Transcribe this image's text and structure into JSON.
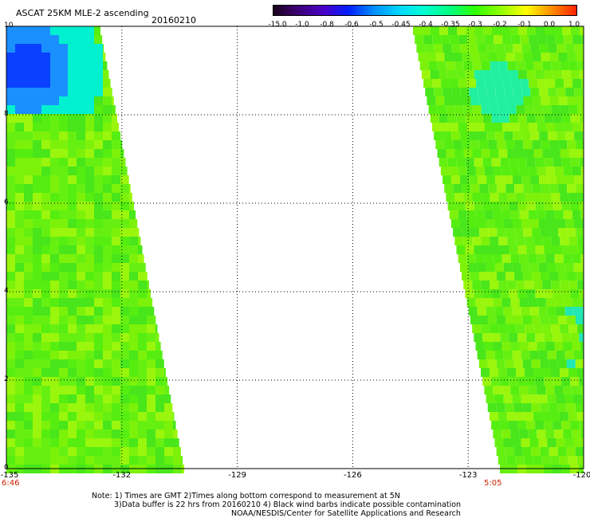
{
  "header": {
    "title": "ASCAT 25KM MLE-2 ascending",
    "date": "20160210"
  },
  "colorbar": {
    "labels": [
      "-15.0",
      "-1.0",
      "-0.8",
      "-0.6",
      "-0.5",
      "-0.45",
      "-0.4",
      "-0.35",
      "-0.3",
      "-0.2",
      "-0.1",
      "0.0",
      "1.0"
    ],
    "colors": [
      "#1a001a",
      "#3c0078",
      "#4b00c8",
      "#0020ff",
      "#0090ff",
      "#00d8ff",
      "#00ffd0",
      "#00ff80",
      "#30ff00",
      "#90ff00",
      "#ffff00",
      "#ff9000",
      "#ff2000"
    ]
  },
  "axes": {
    "x_ticks": [
      "-135",
      "-132",
      "-129",
      "-126",
      "-123",
      "-120"
    ],
    "y_ticks": [
      "0",
      "2",
      "4",
      "6",
      "8",
      "10"
    ],
    "xlim": [
      -135,
      -120
    ],
    "ylim": [
      0,
      10
    ]
  },
  "times": {
    "left": "6:46",
    "right": "5:05"
  },
  "notes": {
    "line1": "Note: 1) Times are GMT 2)Times along bottom correspond to measurement at 5N",
    "line2": "3)Data buffer is 22 hrs from 20160210 4) Black wind barbs indicate possible contamination",
    "line3": "NOAA/NESDIS/Center for Satellite Applications and Research"
  },
  "colors": {
    "swath_base": "#7cf20a",
    "swath_alt": "#55ee10",
    "swath_cyan": "#00f0d0",
    "swath_blue": "#0a40ff"
  }
}
